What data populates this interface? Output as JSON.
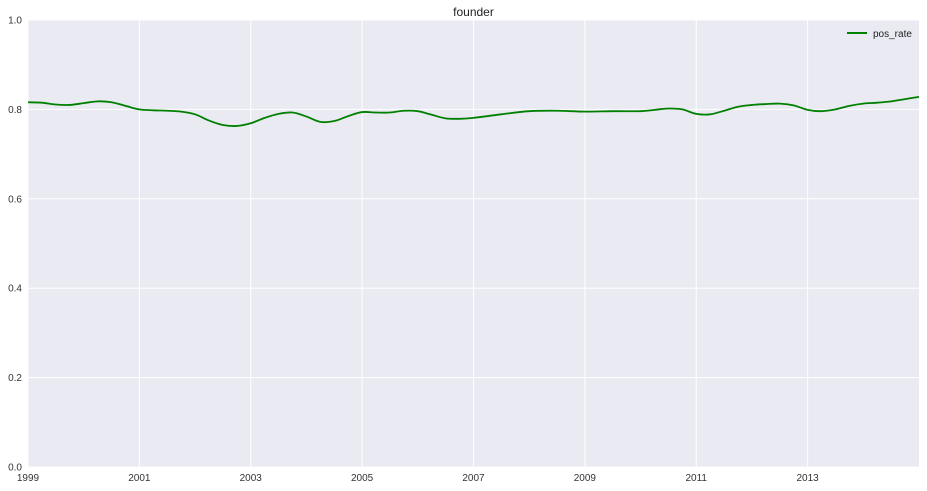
{
  "chart_data": {
    "type": "line",
    "title": "founder",
    "xlabel": "",
    "ylabel": "",
    "xlim": [
      1999,
      2015
    ],
    "ylim": [
      0,
      1.0
    ],
    "grid": true,
    "legend_position": "top-right",
    "xticks": [
      1999,
      2001,
      2003,
      2005,
      2007,
      2009,
      2011,
      2013
    ],
    "xtick_labels": [
      "1999",
      "2001",
      "2003",
      "2005",
      "2007",
      "2009",
      "2011",
      "2013"
    ],
    "yticks": [
      0,
      0.2,
      0.4,
      0.6,
      0.8,
      1.0
    ],
    "ytick_labels": [
      "0.0",
      "0.2",
      "0.4",
      "0.6",
      "0.8",
      "1.0"
    ],
    "series": [
      {
        "name": "pos_rate",
        "color": "#008000",
        "x": [
          1999.0,
          1999.25,
          1999.5,
          1999.75,
          2000.0,
          2000.25,
          2000.5,
          2000.75,
          2001.0,
          2001.25,
          2001.5,
          2001.75,
          2002.0,
          2002.25,
          2002.5,
          2002.75,
          2003.0,
          2003.25,
          2003.5,
          2003.75,
          2004.0,
          2004.25,
          2004.5,
          2004.75,
          2005.0,
          2005.25,
          2005.5,
          2005.75,
          2006.0,
          2006.25,
          2006.5,
          2006.75,
          2007.0,
          2007.5,
          2008.0,
          2008.5,
          2009.0,
          2009.5,
          2010.0,
          2010.25,
          2010.5,
          2010.75,
          2011.0,
          2011.25,
          2011.5,
          2011.75,
          2012.0,
          2012.25,
          2012.5,
          2012.75,
          2013.0,
          2013.25,
          2013.5,
          2013.75,
          2014.0,
          2014.25,
          2014.5,
          2014.75,
          2015.0
        ],
        "values": [
          0.816,
          0.815,
          0.811,
          0.81,
          0.814,
          0.818,
          0.816,
          0.808,
          0.8,
          0.798,
          0.797,
          0.795,
          0.789,
          0.775,
          0.765,
          0.763,
          0.769,
          0.781,
          0.79,
          0.793,
          0.784,
          0.772,
          0.774,
          0.785,
          0.794,
          0.793,
          0.793,
          0.797,
          0.796,
          0.788,
          0.78,
          0.779,
          0.781,
          0.789,
          0.796,
          0.797,
          0.795,
          0.796,
          0.796,
          0.799,
          0.802,
          0.8,
          0.79,
          0.789,
          0.797,
          0.806,
          0.81,
          0.812,
          0.813,
          0.809,
          0.799,
          0.796,
          0.8,
          0.808,
          0.813,
          0.815,
          0.818,
          0.823,
          0.828
        ]
      }
    ]
  }
}
